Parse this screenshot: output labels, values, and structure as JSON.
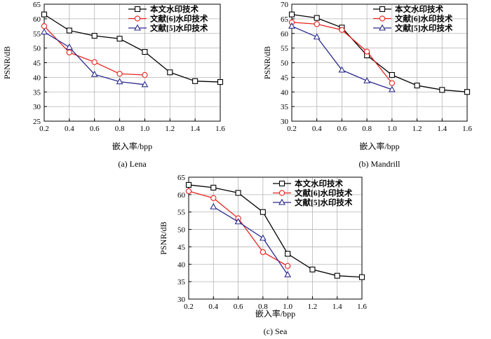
{
  "colors": {
    "series": [
      "#000000",
      "#e8231e",
      "#2a2a8e"
    ],
    "grid": "#b4b4b4"
  },
  "markers": [
    "square",
    "circle",
    "triangle"
  ],
  "chart_data": [
    {
      "type": "line",
      "caption": "(a) Lena",
      "xlabel": "嵌入率/bpp",
      "ylabel": "PSNR/dB",
      "xlim": [
        0.2,
        1.6
      ],
      "ylim": [
        25,
        65
      ],
      "xticks": [
        "0.2",
        "0.4",
        "0.6",
        "0.8",
        "1.0",
        "1.2",
        "1.4",
        "1.6"
      ],
      "yticks": [
        "25",
        "30",
        "35",
        "40",
        "45",
        "50",
        "55",
        "60",
        "65"
      ],
      "grid": true,
      "legend_position": "top-right",
      "series": [
        {
          "name": "本文水印技术",
          "x": [
            0.2,
            0.4,
            0.6,
            0.8,
            1.0,
            1.2,
            1.4,
            1.6
          ],
          "y": [
            61.5,
            56,
            54.2,
            53.2,
            48.7,
            41.7,
            38.7,
            38.4
          ]
        },
        {
          "name": "文献[6]水印技术",
          "x": [
            0.2,
            0.4,
            0.6,
            0.8,
            1.0
          ],
          "y": [
            57.5,
            48.5,
            45.2,
            41.2,
            40.8
          ]
        },
        {
          "name": "文献[5]水印技术",
          "x": [
            0.2,
            0.4,
            0.6,
            0.8,
            1.0
          ],
          "y": [
            55.5,
            50.3,
            41,
            38.5,
            37.5
          ]
        }
      ]
    },
    {
      "type": "line",
      "caption": "(b) Mandrill",
      "xlabel": "嵌入率/bpp",
      "ylabel": "PSNR/dB",
      "xlim": [
        0.2,
        1.6
      ],
      "ylim": [
        30,
        70
      ],
      "xticks": [
        "0.2",
        "0.4",
        "0.6",
        "0.8",
        "1.0",
        "1.2",
        "1.4",
        "1.6"
      ],
      "yticks": [
        "30",
        "35",
        "40",
        "45",
        "50",
        "55",
        "60",
        "65",
        "70"
      ],
      "grid": true,
      "legend_position": "top-right",
      "series": [
        {
          "name": "本文水印技术",
          "x": [
            0.2,
            0.4,
            0.6,
            0.8,
            1.0,
            1.2,
            1.4,
            1.6
          ],
          "y": [
            66.5,
            65.3,
            62,
            52.5,
            45.8,
            42.2,
            40.7,
            40
          ]
        },
        {
          "name": "文献[6]水印技术",
          "x": [
            0.2,
            0.4,
            0.6,
            0.8,
            1.0
          ],
          "y": [
            63.8,
            63.2,
            61.2,
            53.8,
            43
          ]
        },
        {
          "name": "文献[5]水印技术",
          "x": [
            0.2,
            0.4,
            0.6,
            0.8,
            1.0
          ],
          "y": [
            62.5,
            58.8,
            47.5,
            43.8,
            40.8
          ]
        }
      ]
    },
    {
      "type": "line",
      "caption": "(c) Sea",
      "xlabel": "嵌入率/bpp",
      "ylabel": "PSNR/dB",
      "xlim": [
        0.2,
        1.6
      ],
      "ylim": [
        30,
        65
      ],
      "xticks": [
        "0.2",
        "0.4",
        "0.6",
        "0.8",
        "1.0",
        "1.2",
        "1.4",
        "1.6"
      ],
      "yticks": [
        "30",
        "35",
        "40",
        "45",
        "50",
        "55",
        "60",
        "65"
      ],
      "grid": true,
      "legend_position": "top-right",
      "series": [
        {
          "name": "本文水印技术",
          "x": [
            0.2,
            0.4,
            0.6,
            0.8,
            1.0,
            1.2,
            1.4,
            1.6
          ],
          "y": [
            62.8,
            62,
            60.5,
            55,
            43,
            38.5,
            36.7,
            36.3
          ]
        },
        {
          "name": "文献[6]水印技术",
          "x": [
            0.2,
            0.4,
            0.6,
            0.8,
            1.0
          ],
          "y": [
            61,
            59,
            53.2,
            43.5,
            39.5
          ]
        },
        {
          "name": "文献[5]水印技术",
          "x": [
            0.4,
            0.6,
            0.8,
            1.0
          ],
          "y": [
            56.5,
            52.2,
            47.5,
            37
          ]
        }
      ]
    }
  ]
}
